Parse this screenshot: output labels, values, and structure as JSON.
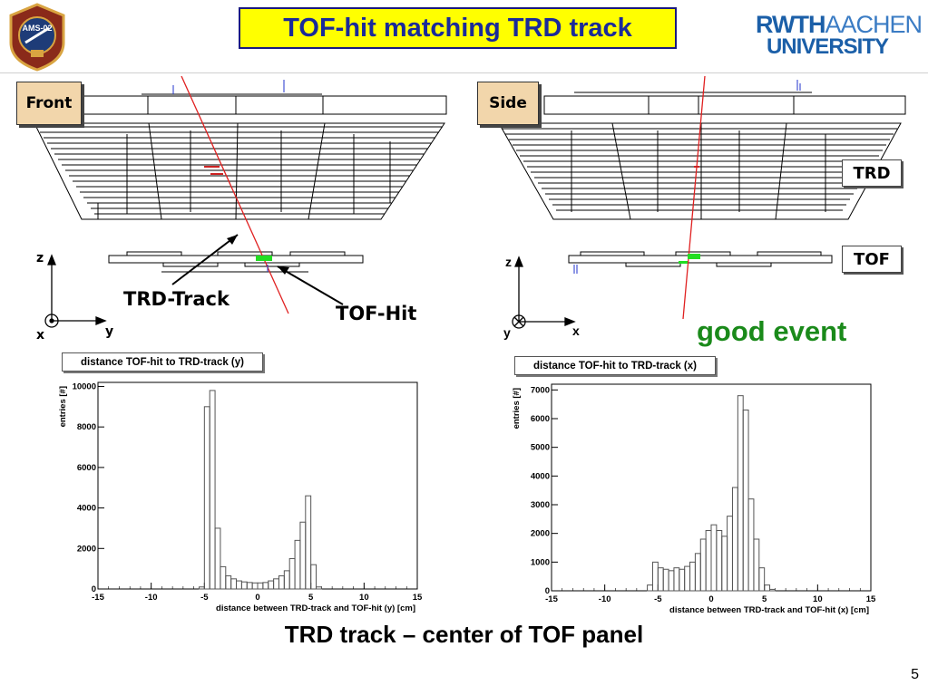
{
  "title": "TOF-hit matching TRD track",
  "logo": {
    "badge_text": "AMS-02",
    "university_line1_bold": "RWTH",
    "university_line1_light": "AACHEN",
    "university_line2": "UNIVERSITY"
  },
  "views": {
    "front": {
      "tag": "Front",
      "track_label": "TRD-Track",
      "hit_label": "TOF-Hit",
      "axis": {
        "vertical": "z",
        "horizontal": "y",
        "out_of_plane": "x"
      }
    },
    "side": {
      "tag": "Side",
      "trd_label": "TRD",
      "tof_label": "TOF",
      "axis": {
        "vertical": "z",
        "horizontal": "x",
        "out_of_plane": "y"
      }
    }
  },
  "status_text": "good event",
  "histograms": [
    {
      "title": "distance TOF-hit to TRD-track (y)",
      "xlabel": "distance between TRD-track and TOF-hit (y)  [cm]",
      "ylabel": "entries",
      "yunit": "[#]",
      "xlim": [
        -15,
        15
      ],
      "ylim": [
        0,
        10200
      ],
      "xticks": [
        -15,
        -10,
        -5,
        0,
        5,
        10,
        15
      ],
      "yticks": [
        0,
        2000,
        4000,
        6000,
        8000,
        10000
      ],
      "color": "#555555"
    },
    {
      "title": "distance TOF-hit to TRD-track (x)",
      "xlabel": "distance between TRD-track and TOF-hit (x)  [cm]",
      "ylabel": "entries",
      "yunit": "[#]",
      "xlim": [
        -15,
        15
      ],
      "ylim": [
        0,
        7200
      ],
      "xticks": [
        -15,
        -10,
        -5,
        0,
        5,
        10,
        15
      ],
      "yticks": [
        0,
        1000,
        2000,
        3000,
        4000,
        5000,
        6000,
        7000
      ],
      "color": "#555555"
    }
  ],
  "chart_data": [
    {
      "type": "bar",
      "title": "distance TOF-hit to TRD-track (y)",
      "xlabel": "distance between TRD-track and TOF-hit (y)  [cm]",
      "ylabel": "entries",
      "xlim": [
        -15,
        15
      ],
      "ylim": [
        0,
        10200
      ],
      "bin_width": 0.5,
      "x": [
        -5.5,
        -5.0,
        -4.5,
        -4.0,
        -3.5,
        -3.0,
        -2.5,
        -2.0,
        -1.5,
        -1.0,
        -0.5,
        0.0,
        0.5,
        1.0,
        1.5,
        2.0,
        2.5,
        3.0,
        3.5,
        4.0,
        4.5,
        5.0,
        5.5
      ],
      "values": [
        100,
        9000,
        9800,
        3000,
        1100,
        650,
        500,
        400,
        350,
        320,
        300,
        300,
        320,
        400,
        500,
        650,
        900,
        1500,
        2400,
        3300,
        4600,
        1200,
        100
      ]
    },
    {
      "type": "bar",
      "title": "distance TOF-hit to TRD-track (x)",
      "xlabel": "distance between TRD-track and TOF-hit (x)  [cm]",
      "ylabel": "entries",
      "xlim": [
        -15,
        15
      ],
      "ylim": [
        0,
        7200
      ],
      "bin_width": 0.5,
      "x": [
        -6.0,
        -5.5,
        -5.0,
        -4.5,
        -4.0,
        -3.5,
        -3.0,
        -2.5,
        -2.0,
        -1.5,
        -1.0,
        -0.5,
        0.0,
        0.5,
        1.0,
        1.5,
        2.0,
        2.5,
        3.0,
        3.5,
        4.0,
        4.5,
        5.0,
        5.5
      ],
      "values": [
        200,
        1000,
        800,
        750,
        700,
        800,
        750,
        850,
        1000,
        1300,
        1800,
        2100,
        2300,
        2100,
        1900,
        2600,
        3600,
        6800,
        6300,
        3200,
        1800,
        800,
        200,
        50
      ]
    }
  ],
  "caption": "TRD track – center of TOF panel",
  "page_number": "5"
}
